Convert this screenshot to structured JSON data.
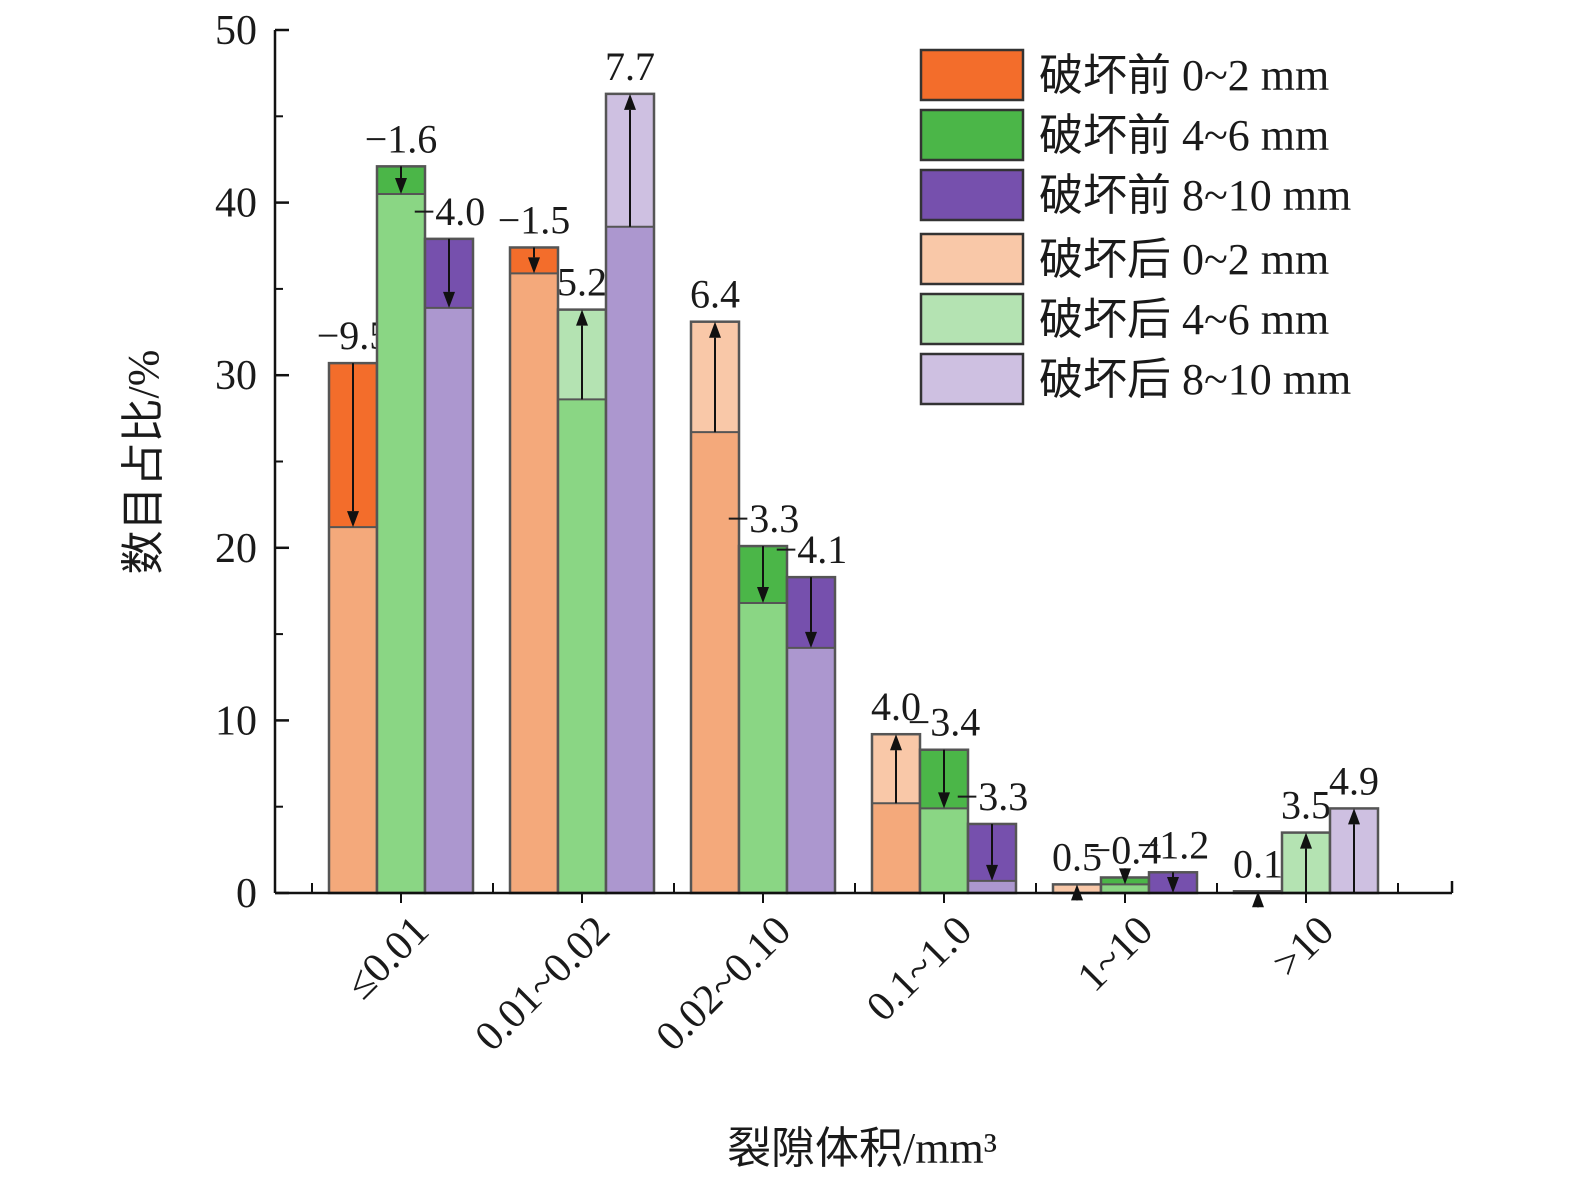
{
  "chart_data": {
    "type": "bar",
    "title": "",
    "xlabel": "裂隙体积/mm³",
    "ylabel": "数目占比/%",
    "ylim": [
      0,
      50
    ],
    "yticks": [
      "0",
      "10",
      "20",
      "30",
      "40",
      "50"
    ],
    "yticks_values": [
      0,
      10,
      20,
      30,
      40,
      50
    ],
    "grid": false,
    "legend_position": "top-right",
    "categories": [
      "≤0.01",
      "0.01~0.02",
      "0.02~0.10",
      "0.1~1.0",
      "1~10",
      ">10"
    ],
    "groups": [
      {
        "name": "0~2 mm",
        "colors": {
          "before": "#f36d2b",
          "after": "#f9c8a8",
          "overlap": "#f4a97b"
        }
      },
      {
        "name": "4~6 mm",
        "colors": {
          "before": "#4bb648",
          "after": "#b4e3b2",
          "overlap": "#8ad684"
        }
      },
      {
        "name": "8~10 mm",
        "colors": {
          "before": "#7650ad",
          "after": "#cec0e1",
          "overlap": "#ac97cf"
        }
      }
    ],
    "series": [
      {
        "name": "破坏前 0~2 mm",
        "values": [
          30.7,
          37.4,
          26.7,
          5.2,
          0.0,
          0.0
        ]
      },
      {
        "name": "破坏前 4~6 mm",
        "values": [
          42.1,
          28.6,
          20.1,
          8.3,
          0.9,
          0.0
        ]
      },
      {
        "name": "破坏前 8~10 mm",
        "values": [
          37.9,
          38.6,
          18.3,
          4.0,
          1.2,
          0.0
        ]
      },
      {
        "name": "破坏后 0~2 mm",
        "values": [
          21.2,
          35.9,
          33.1,
          9.2,
          0.5,
          0.1
        ]
      },
      {
        "name": "破坏后 4~6 mm",
        "values": [
          40.5,
          33.8,
          16.8,
          4.9,
          0.5,
          3.5
        ]
      },
      {
        "name": "破坏后 8~10 mm",
        "values": [
          33.9,
          46.3,
          14.2,
          0.7,
          0.0,
          4.9
        ]
      }
    ],
    "change_labels": [
      [
        "−9.5",
        "−1.6",
        "−4.0"
      ],
      [
        "−1.5",
        "5.2",
        "7.7"
      ],
      [
        "6.4",
        "−3.3",
        "−4.1"
      ],
      [
        "4.0",
        "−3.4",
        "−3.3"
      ],
      [
        "0.5",
        "−0.4",
        "−1.2"
      ],
      [
        "0.1",
        "3.5",
        "4.9"
      ]
    ],
    "legend": [
      "破坏前 0~2 mm",
      "破坏前 4~6 mm",
      "破坏前 8~10 mm",
      "破坏后 0~2 mm",
      "破坏后 4~6 mm",
      "破坏后 8~10 mm"
    ]
  }
}
